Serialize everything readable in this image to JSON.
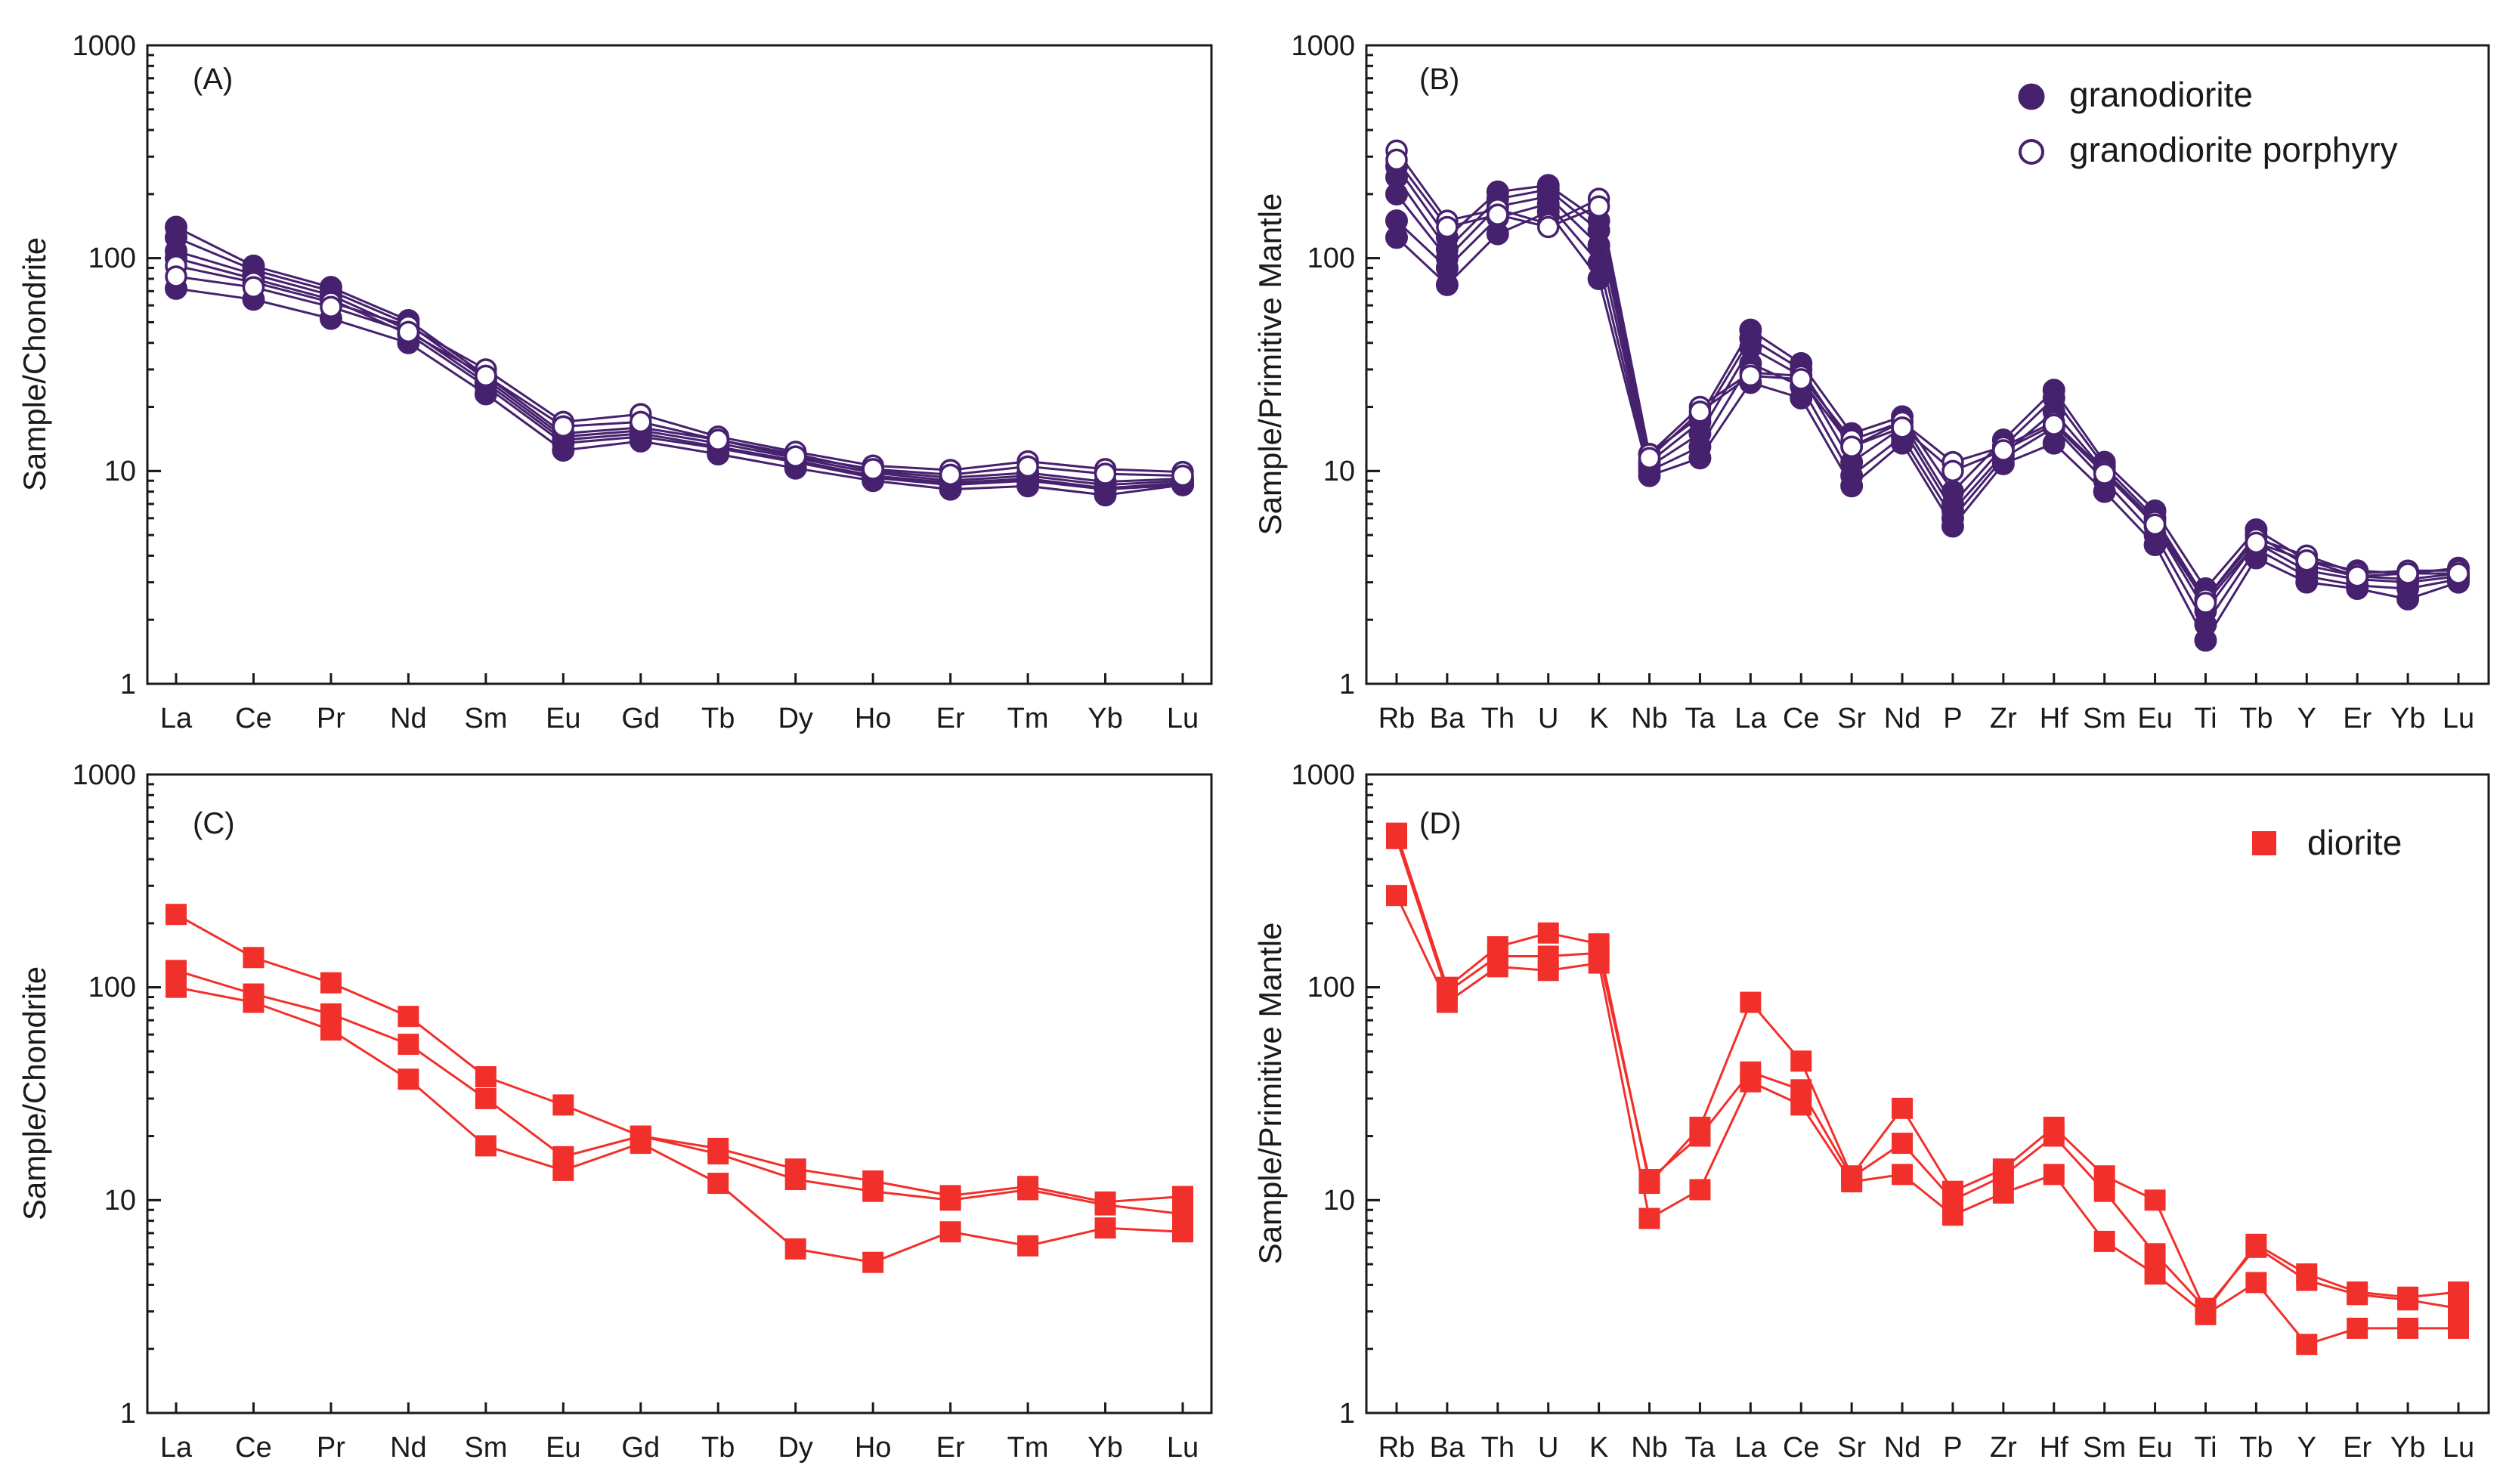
{
  "figure": {
    "colors": {
      "purple": "#46216e",
      "red": "#f2302b",
      "axis": "#1a1a1a"
    },
    "legend_granodiorite": "granodiorite",
    "legend_porphyry": "granodiorite porphyry",
    "legend_diorite": "diorite"
  },
  "chart_data": [
    {
      "id": "A",
      "type": "line",
      "panel_label": "(A)",
      "title": "(A)",
      "ylabel": "Sample/Chondrite",
      "xlabel": "",
      "yscale": "log",
      "ylim": [
        1,
        1000
      ],
      "yticks": [
        "1",
        "10",
        "100",
        "1000"
      ],
      "categories": [
        "La",
        "Ce",
        "Pr",
        "Nd",
        "Sm",
        "Eu",
        "Gd",
        "Tb",
        "Dy",
        "Ho",
        "Er",
        "Tm",
        "Yb",
        "Lu"
      ],
      "series": [
        {
          "name": "granodiorite",
          "marker": "filled-circle",
          "color": "purple",
          "values": [
            140,
            92,
            73,
            51,
            28,
            15,
            16,
            14,
            12,
            10,
            9.3,
            9.8,
            8.9,
            9.2
          ]
        },
        {
          "name": "granodiorite",
          "marker": "filled-circle",
          "color": "purple",
          "values": [
            125,
            88,
            70,
            49,
            27,
            14.5,
            15.5,
            13.5,
            11.5,
            9.8,
            9,
            9.5,
            8.6,
            9
          ]
        },
        {
          "name": "granodiorite",
          "marker": "filled-circle",
          "color": "purple",
          "values": [
            108,
            84,
            67,
            46,
            26,
            14,
            15,
            13,
            11.2,
            9.5,
            8.8,
            9.2,
            8.3,
            8.8
          ]
        },
        {
          "name": "granodiorite",
          "marker": "filled-circle",
          "color": "purple",
          "values": [
            100,
            80,
            64,
            44,
            25,
            13.5,
            14.5,
            12.8,
            11,
            9.3,
            8.6,
            9,
            8.2,
            8.6
          ]
        },
        {
          "name": "granodiorite",
          "marker": "filled-circle",
          "color": "purple",
          "values": [
            72,
            64,
            52,
            40,
            23,
            12.5,
            13.8,
            12,
            10.3,
            9,
            8.2,
            8.5,
            7.7,
            8.6
          ]
        },
        {
          "name": "granodiorite porphyry",
          "marker": "open-circle",
          "color": "purple",
          "values": [
            92,
            77,
            62,
            48,
            30,
            17,
            18.5,
            14.5,
            12.3,
            10.6,
            10.1,
            11.1,
            10.2,
            9.9
          ]
        },
        {
          "name": "granodiorite porphyry",
          "marker": "open-circle",
          "color": "purple",
          "values": [
            82,
            73,
            59,
            45,
            28,
            16.2,
            17,
            14,
            11.7,
            10.2,
            9.6,
            10.5,
            9.7,
            9.5
          ]
        }
      ]
    },
    {
      "id": "B",
      "type": "line",
      "panel_label": "(B)",
      "title": "(B)",
      "ylabel": "Sample/Primitive Mantle",
      "xlabel": "",
      "yscale": "log",
      "ylim": [
        1,
        1000
      ],
      "yticks": [
        "1",
        "10",
        "100",
        "1000"
      ],
      "categories": [
        "Rb",
        "Ba",
        "Th",
        "U",
        "K",
        "Nb",
        "Ta",
        "La",
        "Ce",
        "Sr",
        "Nd",
        "P",
        "Zr",
        "Hf",
        "Sm",
        "Eu",
        "Ti",
        "Tb",
        "Y",
        "Er",
        "Yb",
        "Lu"
      ],
      "legend": [
        "granodiorite",
        "granodiorite porphyry"
      ],
      "series": [
        {
          "name": "granodiorite",
          "marker": "filled-circle",
          "color": "purple",
          "values": [
            270,
            125,
            205,
            220,
            150,
            12,
            18,
            46,
            32,
            15,
            18,
            8,
            14,
            24,
            11,
            6.5,
            2.8,
            5.3,
            3.8,
            3.4,
            3.3,
            3.5
          ]
        },
        {
          "name": "granodiorite",
          "marker": "filled-circle",
          "color": "purple",
          "values": [
            240,
            110,
            190,
            210,
            135,
            11,
            17,
            42,
            30,
            13,
            17,
            7,
            13,
            22,
            10.5,
            6,
            2.5,
            5,
            3.6,
            3.2,
            3.1,
            3.3
          ]
        },
        {
          "name": "granodiorite",
          "marker": "filled-circle",
          "color": "purple",
          "values": [
            200,
            100,
            175,
            195,
            115,
            10.5,
            15,
            38,
            28,
            11,
            16,
            6.5,
            12,
            19,
            10,
            5.5,
            2.2,
            4.6,
            3.4,
            3.1,
            3,
            3.2
          ]
        },
        {
          "name": "granodiorite",
          "marker": "filled-circle",
          "color": "purple",
          "values": [
            150,
            90,
            155,
            180,
            95,
            10,
            13,
            32,
            25,
            9.5,
            14.5,
            6,
            11.5,
            16,
            9,
            5,
            1.9,
            4.3,
            3.2,
            2.9,
            2.8,
            3.1
          ]
        },
        {
          "name": "granodiorite",
          "marker": "filled-circle",
          "color": "purple",
          "values": [
            125,
            75,
            130,
            165,
            80,
            9.5,
            11.5,
            26,
            22,
            8.5,
            13.5,
            5.5,
            10.8,
            13.5,
            8,
            4.5,
            1.6,
            3.9,
            3,
            2.8,
            2.5,
            3
          ]
        },
        {
          "name": "granodiorite porphyry",
          "marker": "open-circle",
          "color": "purple",
          "values": [
            320,
            150,
            170,
            145,
            190,
            12,
            20,
            29,
            28,
            14,
            17,
            11,
            13,
            17,
            10,
            5.8,
            2.5,
            4.8,
            4,
            3.3,
            3.4,
            3.4
          ]
        },
        {
          "name": "granodiorite porphyry",
          "marker": "open-circle",
          "color": "purple",
          "values": [
            290,
            140,
            160,
            140,
            175,
            11.5,
            19,
            28,
            27,
            13,
            16,
            10,
            12.5,
            16.5,
            9.7,
            5.6,
            2.4,
            4.6,
            3.8,
            3.2,
            3.3,
            3.3
          ]
        }
      ]
    },
    {
      "id": "C",
      "type": "line",
      "panel_label": "(C)",
      "title": "(C)",
      "ylabel": "Sample/Chondrite",
      "xlabel": "",
      "yscale": "log",
      "ylim": [
        1,
        1000
      ],
      "yticks": [
        "1",
        "10",
        "100",
        "1000"
      ],
      "categories": [
        "La",
        "Ce",
        "Pr",
        "Nd",
        "Sm",
        "Eu",
        "Gd",
        "Tb",
        "Dy",
        "Ho",
        "Er",
        "Tm",
        "Yb",
        "Lu"
      ],
      "series": [
        {
          "name": "diorite",
          "marker": "filled-square",
          "color": "red",
          "values": [
            220,
            138,
            105,
            73,
            38,
            28,
            20,
            17.5,
            14,
            12.3,
            10.5,
            11.6,
            9.8,
            10.4
          ]
        },
        {
          "name": "diorite",
          "marker": "filled-square",
          "color": "red",
          "values": [
            120,
            93,
            75,
            54,
            30,
            16,
            20,
            16.5,
            12.5,
            11,
            10,
            11.2,
            9.5,
            8.6
          ]
        },
        {
          "name": "diorite",
          "marker": "filled-square",
          "color": "red",
          "values": [
            100,
            85,
            63,
            37,
            18,
            13.8,
            18.5,
            12,
            5.9,
            5.1,
            7.1,
            6.1,
            7.4,
            7.1
          ]
        }
      ]
    },
    {
      "id": "D",
      "type": "line",
      "panel_label": "(D)",
      "title": "(D)",
      "ylabel": "Sample/Primitive Mantle",
      "xlabel": "",
      "yscale": "log",
      "ylim": [
        1,
        1000
      ],
      "yticks": [
        "1",
        "10",
        "100",
        "1000"
      ],
      "categories": [
        "Rb",
        "Ba",
        "Th",
        "U",
        "K",
        "Nb",
        "Ta",
        "La",
        "Ce",
        "Sr",
        "Nd",
        "P",
        "Zr",
        "Hf",
        "Sm",
        "Eu",
        "Ti",
        "Tb",
        "Y",
        "Er",
        "Yb",
        "Lu"
      ],
      "legend": [
        "diorite"
      ],
      "series": [
        {
          "name": "diorite",
          "marker": "filled-square",
          "color": "red",
          "values": [
            530,
            100,
            155,
            180,
            160,
            12,
            22,
            85,
            45,
            13,
            27,
            11,
            14,
            22,
            13,
            10,
            3,
            6.2,
            4.5,
            3.7,
            3.5,
            3.7
          ]
        },
        {
          "name": "diorite",
          "marker": "filled-square",
          "color": "red",
          "values": [
            500,
            95,
            140,
            140,
            145,
            12.5,
            20,
            40,
            33,
            12.8,
            18.5,
            10,
            13,
            20,
            11,
            5.6,
            3.1,
            6,
            4.2,
            3.6,
            3.4,
            3.1
          ]
        },
        {
          "name": "diorite",
          "marker": "filled-square",
          "color": "red",
          "values": [
            270,
            85,
            125,
            120,
            130,
            8.2,
            11.2,
            36,
            28,
            12.2,
            13.2,
            8.5,
            10.8,
            13.2,
            6.4,
            4.5,
            2.9,
            4.1,
            2.1,
            2.5,
            2.5,
            2.5
          ]
        }
      ]
    }
  ]
}
